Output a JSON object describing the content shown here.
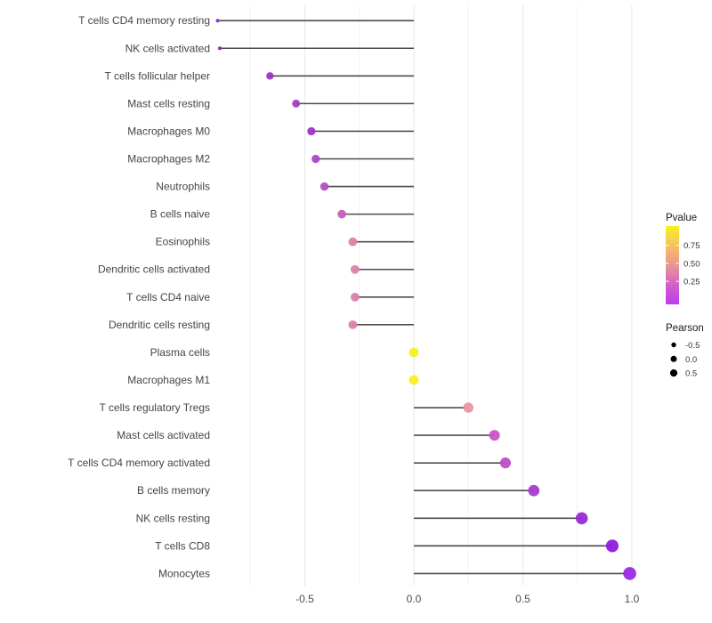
{
  "chart_data": {
    "type": "lollipop",
    "orientation": "horizontal",
    "title": "",
    "xlabel": "",
    "ylabel": "",
    "x_axis": {
      "range": [
        -0.92,
        1.09
      ],
      "major_ticks": [
        -0.5,
        0.0,
        0.5,
        1.0
      ],
      "tick_labels": [
        "-0.5",
        "0.0",
        "0.5",
        "1.0"
      ],
      "minor_ticks": [
        -0.75,
        -0.25,
        0.25,
        0.75
      ],
      "grid": "vertical-only"
    },
    "points": [
      {
        "label": "T cells CD4 memory resting",
        "pearson": -0.9,
        "color": "#8A2BC6",
        "radius": 2.0
      },
      {
        "label": "NK cells activated",
        "pearson": -0.89,
        "color": "#8A2BC6",
        "radius": 2.1
      },
      {
        "label": "T cells follicular helper",
        "pearson": -0.66,
        "color": "#9934C7",
        "radius": 4.2
      },
      {
        "label": "Mast cells resting",
        "pearson": -0.54,
        "color": "#A53EC6",
        "radius": 4.5
      },
      {
        "label": "Macrophages M0",
        "pearson": -0.47,
        "color": "#9C35C9",
        "radius": 4.6
      },
      {
        "label": "Macrophages M2",
        "pearson": -0.45,
        "color": "#AE47C7",
        "radius": 4.65
      },
      {
        "label": "Neutrophils",
        "pearson": -0.41,
        "color": "#B24EC2",
        "radius": 4.7
      },
      {
        "label": "B cells naive",
        "pearson": -0.33,
        "color": "#C260BD",
        "radius": 4.85
      },
      {
        "label": "Eosinophils",
        "pearson": -0.28,
        "color": "#DC81AB",
        "radius": 4.9
      },
      {
        "label": "Dendritic cells activated",
        "pearson": -0.27,
        "color": "#DC81AB",
        "radius": 4.9
      },
      {
        "label": "T cells CD4 naive",
        "pearson": -0.27,
        "color": "#DC81AB",
        "radius": 4.9
      },
      {
        "label": "Dendritic cells resting",
        "pearson": -0.28,
        "color": "#DC81AB",
        "radius": 4.9
      },
      {
        "label": "Plasma cells",
        "pearson": 0.0,
        "color": "#F7F01D",
        "radius": 5.4
      },
      {
        "label": "Macrophages M1",
        "pearson": 0.0,
        "color": "#F7F01D",
        "radius": 5.4
      },
      {
        "label": "T cells regulatory  Tregs",
        "pearson": 0.25,
        "color": "#E897A0",
        "radius": 5.8
      },
      {
        "label": "Mast cells activated",
        "pearson": 0.37,
        "color": "#C556C9",
        "radius": 6.0
      },
      {
        "label": "T cells CD4 memory activated",
        "pearson": 0.42,
        "color": "#BD4FC7",
        "radius": 6.1
      },
      {
        "label": "B cells memory",
        "pearson": 0.55,
        "color": "#A83AD1",
        "radius": 6.35
      },
      {
        "label": "NK cells resting",
        "pearson": 0.77,
        "color": "#9929D7",
        "radius": 6.8
      },
      {
        "label": "T cells CD8",
        "pearson": 0.91,
        "color": "#8E1FDC",
        "radius": 7.1
      },
      {
        "label": "Monocytes",
        "pearson": 0.99,
        "color": "#9A2AE2",
        "radius": 7.3
      }
    ],
    "legend_pvalue": {
      "title": "Pvalue",
      "tick_labels": [
        "0.75",
        "0.50",
        "0.25"
      ],
      "tick_offsets": [
        0.245,
        0.477,
        0.706
      ],
      "gradient_stops": [
        {
          "offset": "0%",
          "color": "#F9F11F"
        },
        {
          "offset": "15%",
          "color": "#F7D44C"
        },
        {
          "offset": "28%",
          "color": "#F4BC6B"
        },
        {
          "offset": "45%",
          "color": "#EC9E85"
        },
        {
          "offset": "60%",
          "color": "#E182A8"
        },
        {
          "offset": "75%",
          "color": "#D45FCB"
        },
        {
          "offset": "100%",
          "color": "#BE3BEC"
        }
      ]
    },
    "legend_pearson": {
      "title": "Pearson",
      "items": [
        {
          "label": "-0.5",
          "radius": 2.7
        },
        {
          "label": "0.0",
          "radius": 3.5
        },
        {
          "label": "0.5",
          "radius": 4.1
        }
      ],
      "dot_color": "#000000"
    },
    "style": {
      "stem_color": "#4D4D4D",
      "grid_major_color": "#E7E7E7",
      "grid_minor_color": "#F2F2F2",
      "background": "#FFFFFF"
    }
  }
}
